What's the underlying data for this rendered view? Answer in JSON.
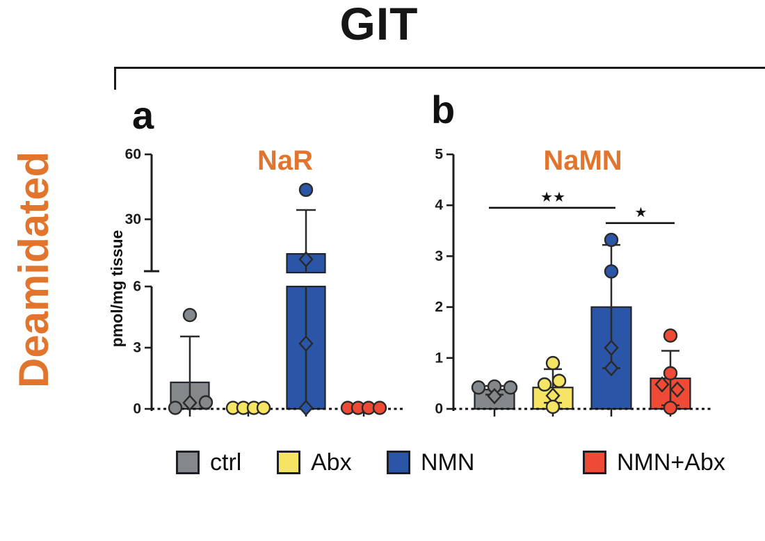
{
  "header": {
    "title": "GIT"
  },
  "side_label": {
    "text": "Deamidated",
    "color": "#E2752D"
  },
  "legend": {
    "items": [
      {
        "label": "ctrl",
        "color": "#84888B"
      },
      {
        "label": "Abx",
        "color": "#F6E465"
      },
      {
        "label": "NMN",
        "color": "#2B55A6"
      },
      {
        "label": "NMN+Abx",
        "color": "#EF4A36"
      }
    ]
  },
  "chart_data": [
    {
      "type": "bar",
      "panel_label": "a",
      "title": "NaR",
      "title_color": "#E2752D",
      "ylabel": "pmol/mg tissue",
      "categories": [
        "ctrl",
        "Abx",
        "NMN",
        "NMN+Abx"
      ],
      "bar_colors": [
        "#84888B",
        "#F6E465",
        "#2B55A6",
        "#EF4A36"
      ],
      "y_axis": {
        "type": "broken",
        "lower_ticks": [
          0,
          3,
          6
        ],
        "upper_ticks": [
          30,
          60
        ],
        "lower_range": [
          0,
          6
        ],
        "upper_range": [
          6,
          60
        ],
        "break_between": [
          6,
          30
        ]
      },
      "baseline_style": "dashed",
      "series": [
        {
          "name": "ctrl",
          "mean": 1.3,
          "error": {
            "high": 3.55
          },
          "points": [
            {
              "v": 0.05,
              "dx": -21,
              "open": false
            },
            {
              "v": 0.3,
              "dx": 0,
              "open": true
            },
            {
              "v": 0.32,
              "dx": 23,
              "open": false
            },
            {
              "v": 4.6,
              "dx": 0,
              "open": false
            }
          ]
        },
        {
          "name": "Abx",
          "mean": 0,
          "points": [
            {
              "v": 0.05,
              "dx": -22,
              "open": false
            },
            {
              "v": 0.05,
              "dx": -7,
              "open": false
            },
            {
              "v": 0.05,
              "dx": 8,
              "open": false
            },
            {
              "v": 0.05,
              "dx": 22,
              "open": false
            }
          ]
        },
        {
          "name": "NMN",
          "mean": 14,
          "error": {
            "high": 34.3
          },
          "points": [
            {
              "v": 0.05,
              "dx": 0,
              "open": true
            },
            {
              "v": 3.2,
              "dx": 0,
              "open": true
            },
            {
              "v": 11.5,
              "dx": 0,
              "open": true
            },
            {
              "v": 43.6,
              "dx": 0,
              "open": false
            }
          ]
        },
        {
          "name": "NMN+Abx",
          "mean": 0,
          "points": [
            {
              "v": 0.05,
              "dx": -23,
              "open": false
            },
            {
              "v": 0.05,
              "dx": -8,
              "open": false
            },
            {
              "v": 0.05,
              "dx": 7,
              "open": false
            },
            {
              "v": 0.05,
              "dx": 23,
              "open": false
            }
          ]
        }
      ]
    },
    {
      "type": "bar",
      "panel_label": "b",
      "title": "NaMN",
      "title_color": "#E2752D",
      "ylabel": "",
      "categories": [
        "ctrl",
        "Abx",
        "NMN",
        "NMN+Abx"
      ],
      "bar_colors": [
        "#84888B",
        "#F6E465",
        "#2B55A6",
        "#EF4A36"
      ],
      "y_axis": {
        "type": "linear",
        "ticks": [
          0,
          1,
          2,
          3,
          4,
          5
        ],
        "range": [
          0,
          5
        ]
      },
      "baseline_style": "dashed",
      "series": [
        {
          "name": "ctrl",
          "mean": 0.38,
          "error": {
            "low": 0.28,
            "high": 0.45
          },
          "points": [
            {
              "v": 0.42,
              "dx": -23,
              "open": false
            },
            {
              "v": 0.44,
              "dx": 0,
              "open": false
            },
            {
              "v": 0.42,
              "dx": 23,
              "open": false
            },
            {
              "v": 0.25,
              "dx": 0,
              "open": true
            }
          ]
        },
        {
          "name": "Abx",
          "mean": 0.42,
          "error": {
            "low": 0.12,
            "high": 0.78
          },
          "points": [
            {
              "v": 0.9,
              "dx": 0,
              "open": false
            },
            {
              "v": 0.55,
              "dx": 9,
              "open": false
            },
            {
              "v": 0.48,
              "dx": -12,
              "open": false
            },
            {
              "v": 0.26,
              "dx": 0,
              "open": true
            },
            {
              "v": 0.04,
              "dx": 0,
              "open": false
            }
          ]
        },
        {
          "name": "NMN",
          "mean": 2.0,
          "error": {
            "low": 0.8,
            "high": 3.22
          },
          "points": [
            {
              "v": 3.32,
              "dx": 0,
              "open": false
            },
            {
              "v": 2.7,
              "dx": 0,
              "open": false
            },
            {
              "v": 1.2,
              "dx": 0,
              "open": true
            },
            {
              "v": 0.8,
              "dx": 0,
              "open": true
            }
          ]
        },
        {
          "name": "NMN+Abx",
          "mean": 0.6,
          "error": {
            "low": 0.07,
            "high": 1.14
          },
          "points": [
            {
              "v": 1.44,
              "dx": 0,
              "open": false
            },
            {
              "v": 0.7,
              "dx": 0,
              "open": false
            },
            {
              "v": 0.48,
              "dx": -12,
              "open": true
            },
            {
              "v": 0.38,
              "dx": 10,
              "open": true
            },
            {
              "v": 0.02,
              "dx": 0,
              "open": false
            }
          ]
        }
      ],
      "significance": [
        {
          "groups": [
            "ctrl",
            "NMN"
          ],
          "from": 0,
          "to": 2,
          "label": "★★",
          "height": 3.95
        },
        {
          "groups": [
            "NMN",
            "NMN+Abx"
          ],
          "from": 2,
          "to": 3,
          "label": "★",
          "height": 3.65
        }
      ]
    }
  ]
}
